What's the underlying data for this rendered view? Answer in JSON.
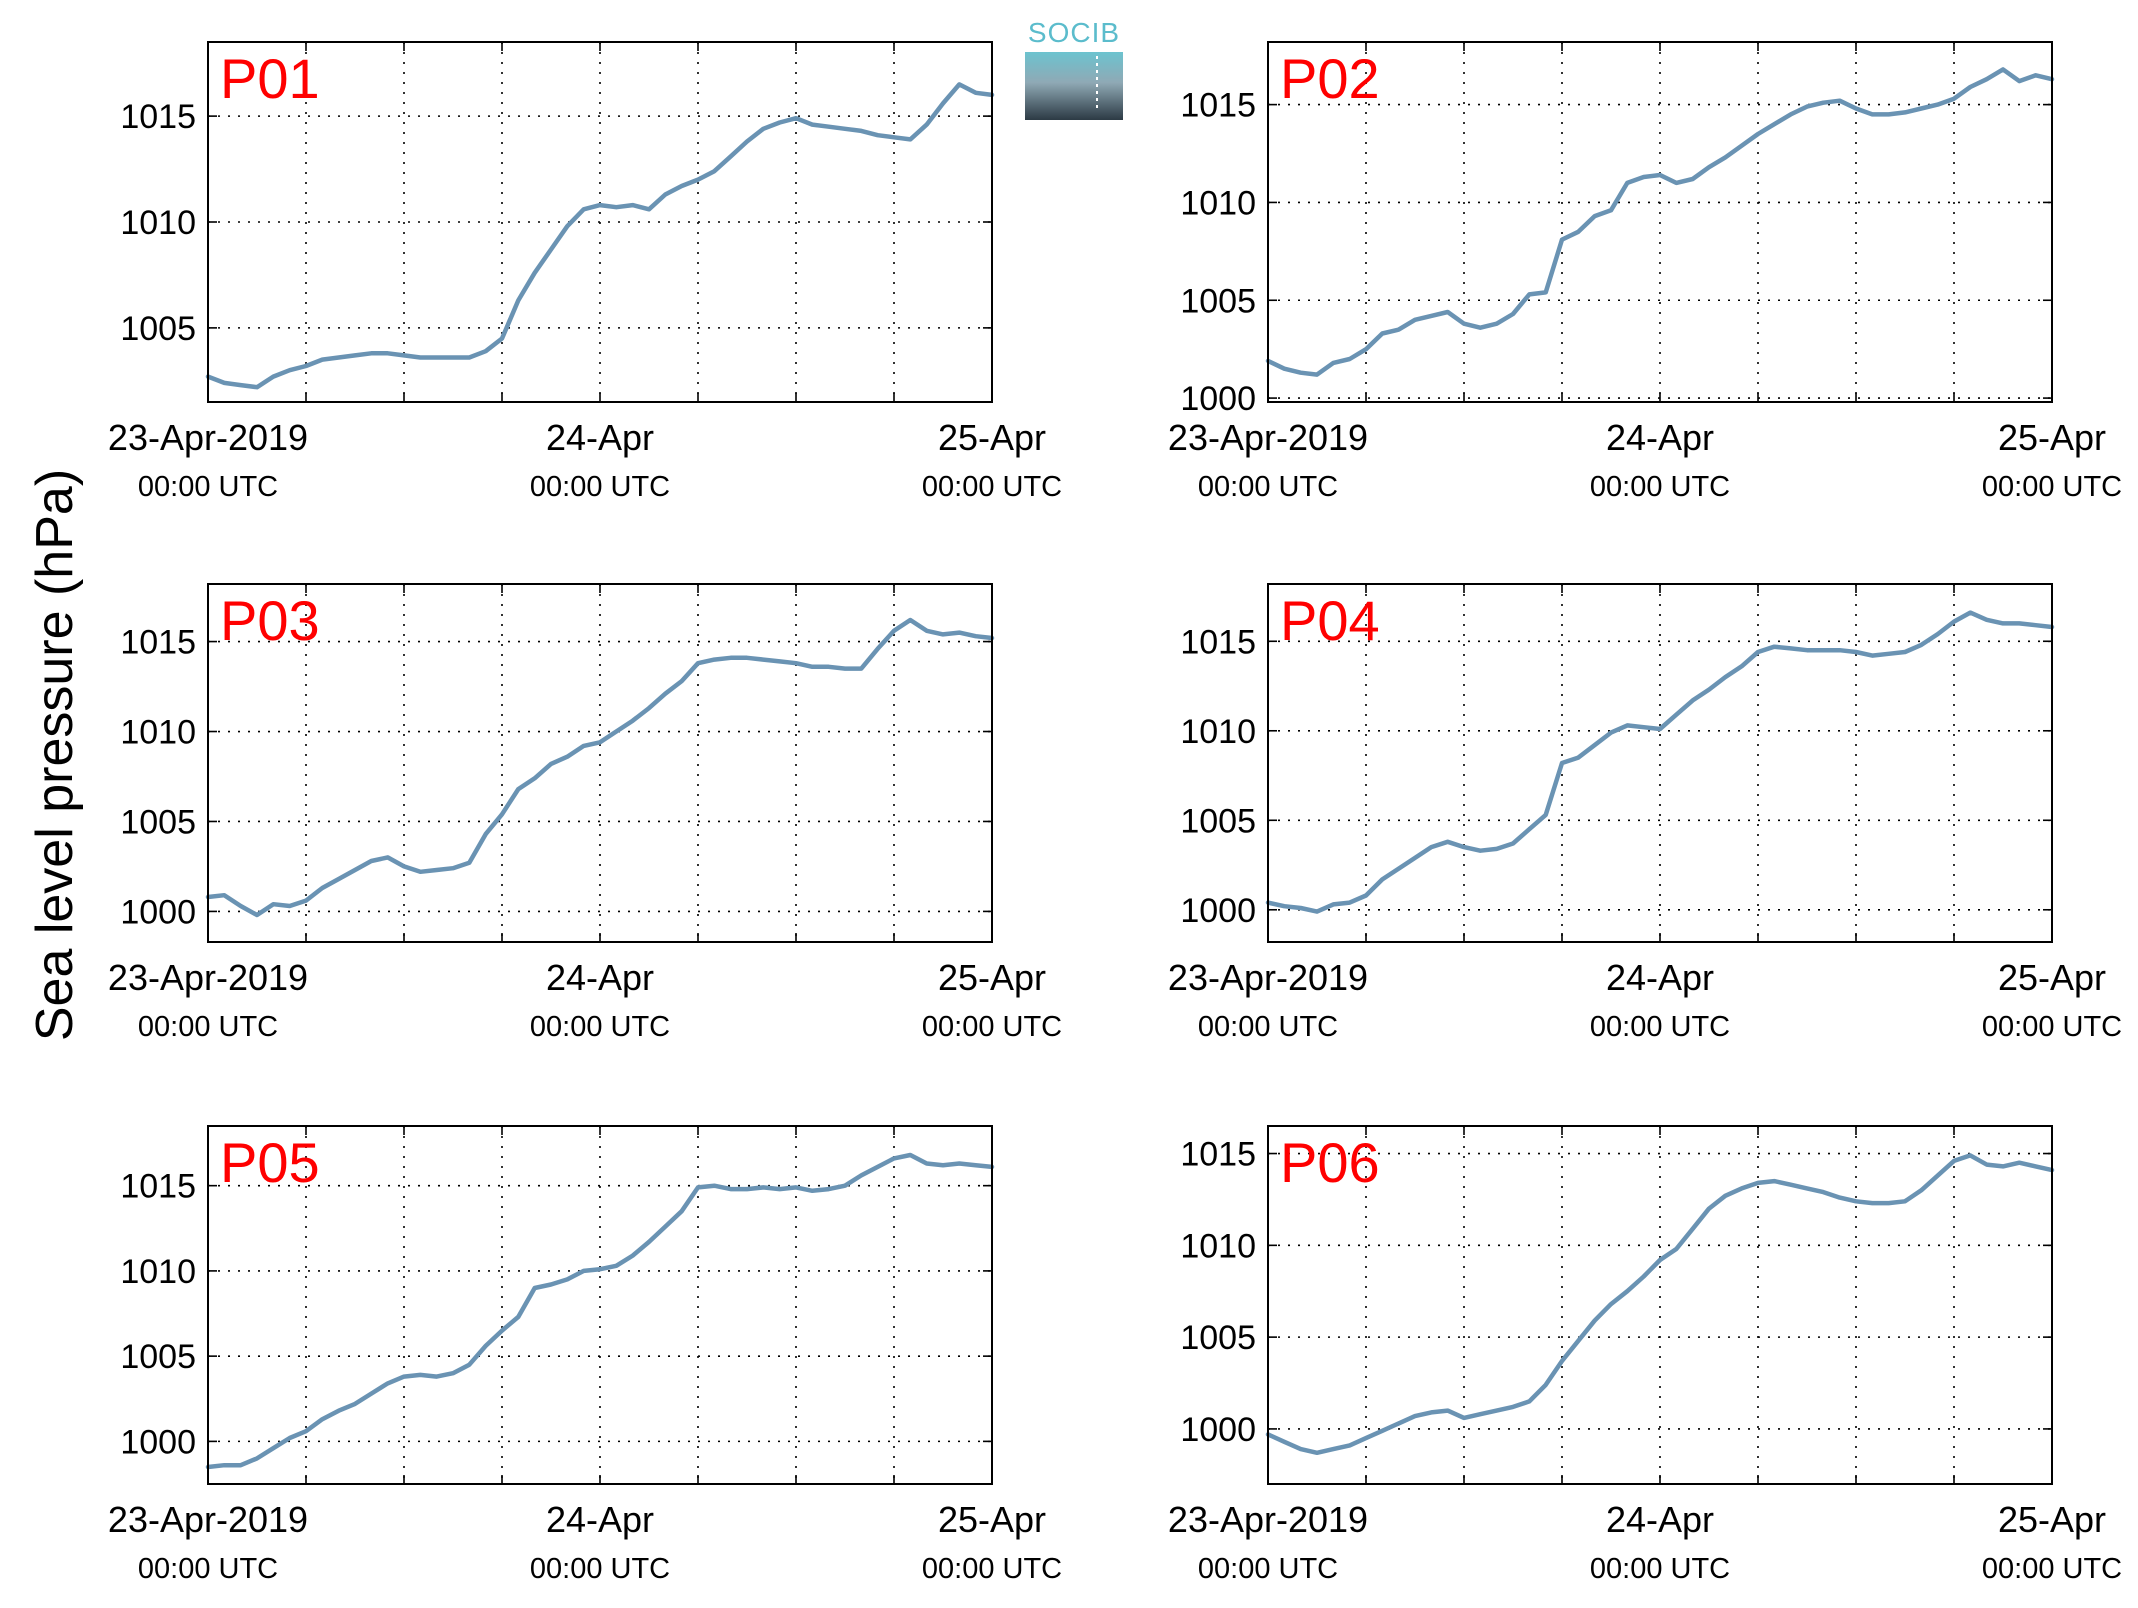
{
  "figure": {
    "ylabel": "Sea level pressure (hPa)",
    "logo_text": "SOCIB"
  },
  "colors": {
    "line": "#6a93b3",
    "panel_label": "#ff0000",
    "logo_top": "#6cc3cf",
    "logo_bottom": "#2c3a44"
  },
  "chart_data": [
    {
      "type": "line",
      "title": "P01",
      "xlim": [
        0,
        48
      ],
      "ylim": [
        1001.5,
        1018.5
      ],
      "yticks": [
        1005,
        1010,
        1015
      ],
      "xticks": [
        {
          "x": 0,
          "date": "23-Apr-2019",
          "time": "00:00 UTC"
        },
        {
          "x": 24,
          "date": "24-Apr",
          "time": "00:00 UTC"
        },
        {
          "x": 48,
          "date": "25-Apr",
          "time": "00:00 UTC"
        }
      ],
      "grid": true,
      "x": [
        0,
        1,
        2,
        3,
        4,
        5,
        6,
        7,
        8,
        9,
        10,
        11,
        12,
        13,
        14,
        15,
        16,
        17,
        18,
        19,
        20,
        21,
        22,
        23,
        24,
        25,
        26,
        27,
        28,
        29,
        30,
        31,
        32,
        33,
        34,
        35,
        36,
        37,
        38,
        39,
        40,
        41,
        42,
        43,
        44,
        45,
        46,
        47,
        48
      ],
      "y": [
        1002.7,
        1002.4,
        1002.3,
        1002.2,
        1002.7,
        1003.0,
        1003.2,
        1003.5,
        1003.6,
        1003.7,
        1003.8,
        1003.8,
        1003.7,
        1003.6,
        1003.6,
        1003.6,
        1003.6,
        1003.9,
        1004.5,
        1006.3,
        1007.6,
        1008.7,
        1009.8,
        1010.6,
        1010.8,
        1010.7,
        1010.8,
        1010.6,
        1011.3,
        1011.7,
        1012.0,
        1012.4,
        1013.1,
        1013.8,
        1014.4,
        1014.7,
        1014.9,
        1014.6,
        1014.5,
        1014.4,
        1014.3,
        1014.1,
        1014.0,
        1013.9,
        1014.6,
        1015.6,
        1016.5,
        1016.1,
        1016.0
      ]
    },
    {
      "type": "line",
      "title": "P02",
      "xlim": [
        0,
        48
      ],
      "ylim": [
        999.8,
        1018.2
      ],
      "yticks": [
        1000,
        1005,
        1010,
        1015
      ],
      "xticks": [
        {
          "x": 0,
          "date": "23-Apr-2019",
          "time": "00:00 UTC"
        },
        {
          "x": 24,
          "date": "24-Apr",
          "time": "00:00 UTC"
        },
        {
          "x": 48,
          "date": "25-Apr",
          "time": "00:00 UTC"
        }
      ],
      "grid": true,
      "x": [
        0,
        1,
        2,
        3,
        4,
        5,
        6,
        7,
        8,
        9,
        10,
        11,
        12,
        13,
        14,
        15,
        16,
        17,
        18,
        19,
        20,
        21,
        22,
        23,
        24,
        25,
        26,
        27,
        28,
        29,
        30,
        31,
        32,
        33,
        34,
        35,
        36,
        37,
        38,
        39,
        40,
        41,
        42,
        43,
        44,
        45,
        46,
        47,
        48
      ],
      "y": [
        1001.9,
        1001.5,
        1001.3,
        1001.2,
        1001.8,
        1002.0,
        1002.5,
        1003.3,
        1003.5,
        1004.0,
        1004.2,
        1004.4,
        1003.8,
        1003.6,
        1003.8,
        1004.3,
        1005.3,
        1005.4,
        1008.1,
        1008.5,
        1009.3,
        1009.6,
        1011.0,
        1011.3,
        1011.4,
        1011.0,
        1011.2,
        1011.8,
        1012.3,
        1012.9,
        1013.5,
        1014.0,
        1014.5,
        1014.9,
        1015.1,
        1015.2,
        1014.8,
        1014.5,
        1014.5,
        1014.6,
        1014.8,
        1015.0,
        1015.3,
        1015.9,
        1016.3,
        1016.8,
        1016.2,
        1016.5,
        1016.3
      ]
    },
    {
      "type": "line",
      "title": "P03",
      "xlim": [
        0,
        48
      ],
      "ylim": [
        998.3,
        1018.2
      ],
      "yticks": [
        1000,
        1005,
        1010,
        1015
      ],
      "xticks": [
        {
          "x": 0,
          "date": "23-Apr-2019",
          "time": "00:00 UTC"
        },
        {
          "x": 24,
          "date": "24-Apr",
          "time": "00:00 UTC"
        },
        {
          "x": 48,
          "date": "25-Apr",
          "time": "00:00 UTC"
        }
      ],
      "grid": true,
      "x": [
        0,
        1,
        2,
        3,
        4,
        5,
        6,
        7,
        8,
        9,
        10,
        11,
        12,
        13,
        14,
        15,
        16,
        17,
        18,
        19,
        20,
        21,
        22,
        23,
        24,
        25,
        26,
        27,
        28,
        29,
        30,
        31,
        32,
        33,
        34,
        35,
        36,
        37,
        38,
        39,
        40,
        41,
        42,
        43,
        44,
        45,
        46,
        47,
        48
      ],
      "y": [
        1000.8,
        1000.9,
        1000.3,
        999.8,
        1000.4,
        1000.3,
        1000.6,
        1001.3,
        1001.8,
        1002.3,
        1002.8,
        1003.0,
        1002.5,
        1002.2,
        1002.3,
        1002.4,
        1002.7,
        1004.3,
        1005.4,
        1006.8,
        1007.4,
        1008.2,
        1008.6,
        1009.2,
        1009.4,
        1010.0,
        1010.6,
        1011.3,
        1012.1,
        1012.8,
        1013.8,
        1014.0,
        1014.1,
        1014.1,
        1014.0,
        1013.9,
        1013.8,
        1013.6,
        1013.6,
        1013.5,
        1013.5,
        1014.6,
        1015.6,
        1016.2,
        1015.6,
        1015.4,
        1015.5,
        1015.3,
        1015.2
      ]
    },
    {
      "type": "line",
      "title": "P04",
      "xlim": [
        0,
        48
      ],
      "ylim": [
        998.2,
        1018.2
      ],
      "yticks": [
        1000,
        1005,
        1010,
        1015
      ],
      "xticks": [
        {
          "x": 0,
          "date": "23-Apr-2019",
          "time": "00:00 UTC"
        },
        {
          "x": 24,
          "date": "24-Apr",
          "time": "00:00 UTC"
        },
        {
          "x": 48,
          "date": "25-Apr",
          "time": "00:00 UTC"
        }
      ],
      "grid": true,
      "x": [
        0,
        1,
        2,
        3,
        4,
        5,
        6,
        7,
        8,
        9,
        10,
        11,
        12,
        13,
        14,
        15,
        16,
        17,
        18,
        19,
        20,
        21,
        22,
        23,
        24,
        25,
        26,
        27,
        28,
        29,
        30,
        31,
        32,
        33,
        34,
        35,
        36,
        37,
        38,
        39,
        40,
        41,
        42,
        43,
        44,
        45,
        46,
        47,
        48
      ],
      "y": [
        1000.4,
        1000.2,
        1000.1,
        999.9,
        1000.3,
        1000.4,
        1000.8,
        1001.7,
        1002.3,
        1002.9,
        1003.5,
        1003.8,
        1003.5,
        1003.3,
        1003.4,
        1003.7,
        1004.5,
        1005.3,
        1008.2,
        1008.5,
        1009.2,
        1009.9,
        1010.3,
        1010.2,
        1010.1,
        1010.9,
        1011.7,
        1012.3,
        1013.0,
        1013.6,
        1014.4,
        1014.7,
        1014.6,
        1014.5,
        1014.5,
        1014.5,
        1014.4,
        1014.2,
        1014.3,
        1014.4,
        1014.8,
        1015.4,
        1016.1,
        1016.6,
        1016.2,
        1016.0,
        1016.0,
        1015.9,
        1015.8
      ]
    },
    {
      "type": "line",
      "title": "P05",
      "xlim": [
        0,
        48
      ],
      "ylim": [
        997.5,
        1018.5
      ],
      "yticks": [
        1000,
        1005,
        1010,
        1015
      ],
      "xticks": [
        {
          "x": 0,
          "date": "23-Apr-2019",
          "time": "00:00 UTC"
        },
        {
          "x": 24,
          "date": "24-Apr",
          "time": "00:00 UTC"
        },
        {
          "x": 48,
          "date": "25-Apr",
          "time": "00:00 UTC"
        }
      ],
      "grid": true,
      "x": [
        0,
        1,
        2,
        3,
        4,
        5,
        6,
        7,
        8,
        9,
        10,
        11,
        12,
        13,
        14,
        15,
        16,
        17,
        18,
        19,
        20,
        21,
        22,
        23,
        24,
        25,
        26,
        27,
        28,
        29,
        30,
        31,
        32,
        33,
        34,
        35,
        36,
        37,
        38,
        39,
        40,
        41,
        42,
        43,
        44,
        45,
        46,
        47,
        48
      ],
      "y": [
        998.5,
        998.6,
        998.6,
        999.0,
        999.6,
        1000.2,
        1000.6,
        1001.3,
        1001.8,
        1002.2,
        1002.8,
        1003.4,
        1003.8,
        1003.9,
        1003.8,
        1004.0,
        1004.5,
        1005.6,
        1006.5,
        1007.3,
        1009.0,
        1009.2,
        1009.5,
        1010.0,
        1010.1,
        1010.3,
        1010.9,
        1011.7,
        1012.6,
        1013.5,
        1014.9,
        1015.0,
        1014.8,
        1014.8,
        1014.9,
        1014.8,
        1014.9,
        1014.7,
        1014.8,
        1015.0,
        1015.6,
        1016.1,
        1016.6,
        1016.8,
        1016.3,
        1016.2,
        1016.3,
        1016.2,
        1016.1
      ]
    },
    {
      "type": "line",
      "title": "P06",
      "xlim": [
        0,
        48
      ],
      "ylim": [
        997.0,
        1016.5
      ],
      "yticks": [
        1000,
        1005,
        1010,
        1015
      ],
      "xticks": [
        {
          "x": 0,
          "date": "23-Apr-2019",
          "time": "00:00 UTC"
        },
        {
          "x": 24,
          "date": "24-Apr",
          "time": "00:00 UTC"
        },
        {
          "x": 48,
          "date": "25-Apr",
          "time": "00:00 UTC"
        }
      ],
      "grid": true,
      "x": [
        0,
        1,
        2,
        3,
        4,
        5,
        6,
        7,
        8,
        9,
        10,
        11,
        12,
        13,
        14,
        15,
        16,
        17,
        18,
        19,
        20,
        21,
        22,
        23,
        24,
        25,
        26,
        27,
        28,
        29,
        30,
        31,
        32,
        33,
        34,
        35,
        36,
        37,
        38,
        39,
        40,
        41,
        42,
        43,
        44,
        45,
        46,
        47,
        48
      ],
      "y": [
        999.7,
        999.3,
        998.9,
        998.7,
        998.9,
        999.1,
        999.5,
        999.9,
        1000.3,
        1000.7,
        1000.9,
        1001.0,
        1000.6,
        1000.8,
        1001.0,
        1001.2,
        1001.5,
        1002.4,
        1003.7,
        1004.8,
        1005.9,
        1006.8,
        1007.5,
        1008.3,
        1009.2,
        1009.8,
        1010.9,
        1012.0,
        1012.7,
        1013.1,
        1013.4,
        1013.5,
        1013.3,
        1013.1,
        1012.9,
        1012.6,
        1012.4,
        1012.3,
        1012.3,
        1012.4,
        1013.0,
        1013.8,
        1014.6,
        1014.9,
        1014.4,
        1014.3,
        1014.5,
        1014.3,
        1014.1
      ]
    }
  ]
}
